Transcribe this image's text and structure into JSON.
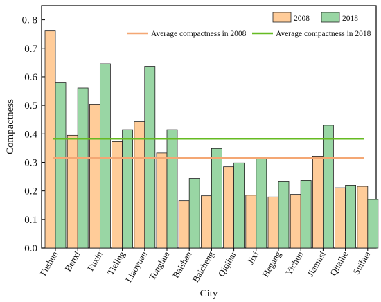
{
  "chart_data": {
    "type": "bar",
    "xlabel": "City",
    "ylabel": "Compactness",
    "ylim": [
      0,
      0.85
    ],
    "yticks": [
      0.0,
      0.1,
      0.2,
      0.3,
      0.4,
      0.5,
      0.6,
      0.7,
      0.8
    ],
    "ytick_labels": [
      "0.0",
      "0.1",
      "0.2",
      "0.3",
      "0.4",
      "0.5",
      "0.6",
      "0.7",
      "0. 8"
    ],
    "categories": [
      "Fushun",
      "Benxi",
      "Fuxin",
      "Tieling",
      "Liaoyuan",
      "Tonghua",
      "Baishan",
      "Baicheng",
      "Qiqihar",
      "Jixi",
      "Hegang",
      "Yichun",
      "Jiamusi",
      "Qitaihe",
      "Suihua"
    ],
    "series": [
      {
        "name": "2008",
        "color": "#FFCC99",
        "values": [
          0.761,
          0.395,
          0.504,
          0.373,
          0.443,
          0.333,
          0.166,
          0.183,
          0.285,
          0.185,
          0.179,
          0.188,
          0.322,
          0.211,
          0.216
        ]
      },
      {
        "name": "2018",
        "color": "#99D6A4",
        "values": [
          0.579,
          0.561,
          0.646,
          0.415,
          0.635,
          0.415,
          0.244,
          0.349,
          0.298,
          0.312,
          0.232,
          0.237,
          0.43,
          0.22,
          0.17
        ]
      }
    ],
    "reference_lines": [
      {
        "name": "Average compactness in 2008",
        "value": 0.316,
        "color": "#F4A774"
      },
      {
        "name": "Average compactness in 2018",
        "value": 0.383,
        "color": "#66BB22"
      }
    ],
    "legend_position": "top-right",
    "grid": false
  }
}
